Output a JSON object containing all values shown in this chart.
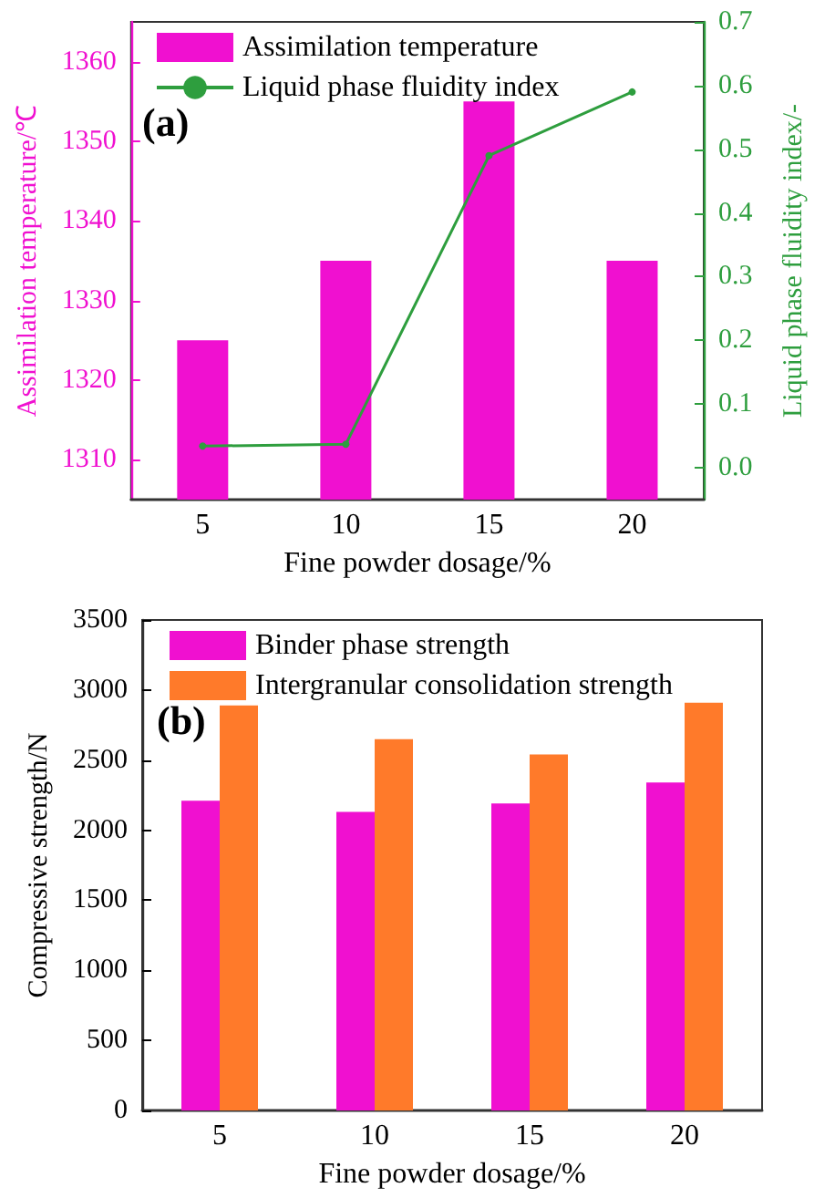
{
  "chart_data": [
    {
      "type": "bar",
      "categories": [
        "5",
        "10",
        "15",
        "20"
      ],
      "xlabel": "Fine powder dosage/%",
      "ylabel": "Assimilation temperature/℃",
      "y2label": "Liquid phase fluidity index/-",
      "ylim": [
        1305,
        1365
      ],
      "yticks": [
        1310,
        1320,
        1330,
        1340,
        1350,
        1360
      ],
      "y2lim": [
        -0.05,
        0.7
      ],
      "y2ticks": [
        {
          "value": 0,
          "label": "0.0"
        },
        0.1,
        0.2,
        0.3,
        0.4,
        0.5,
        0.6,
        0.7
      ],
      "legend": "top left",
      "marker": "circle",
      "annotations": [
        "(a)"
      ],
      "series": [
        {
          "name": "Assimilation temperature",
          "color": "#f010d0",
          "values": [
            1325,
            1335,
            1355,
            1335
          ]
        },
        {
          "name": "Liquid phase fluidity index",
          "type": "line",
          "axis": "y2",
          "color": "#2e9e3e",
          "values": [
            0.034,
            0.037,
            0.49,
            0.59
          ]
        }
      ]
    },
    {
      "type": "bar",
      "categories": [
        "5",
        "10",
        "15",
        "20"
      ],
      "xlabel": "Fine powder dosage/%",
      "ylabel": "Compressive strength/N",
      "ylim": [
        0,
        3500
      ],
      "yticks": [
        0,
        500,
        1000,
        1500,
        2000,
        2500,
        3000,
        3500
      ],
      "legend": "top left",
      "annotations": [
        "(b)"
      ],
      "series": [
        {
          "name": "Binder phase strength",
          "color": "#f010d0",
          "values": [
            2210,
            2130,
            2190,
            2340
          ]
        },
        {
          "name": "Intergranular consolidation strength",
          "color": "#ff7a2a",
          "values": [
            2890,
            2650,
            2540,
            2910
          ]
        }
      ]
    }
  ]
}
